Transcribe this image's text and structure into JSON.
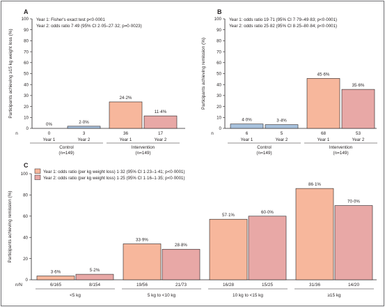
{
  "colors": {
    "control": "#a7c1dc",
    "year1": "#f7b79c",
    "year2": "#e8a8a6",
    "axis": "#231f20",
    "border": "#6d6e71"
  },
  "chart_data": [
    {
      "panel": "A",
      "type": "bar",
      "ylabel": "Participants achieving ≥15 kg weight loss (%)",
      "ylim": [
        0,
        100
      ],
      "yticks": [
        0,
        10,
        20,
        30,
        40,
        50,
        60,
        70,
        80,
        90,
        100
      ],
      "notes": [
        "Year 1: Fisher's exact test p<0·0001",
        "Year 2: odds ratio 7·49 (95% CI 2·05–27·32; p=0·0023)"
      ],
      "n_label": "n",
      "groups": [
        {
          "name": "Control",
          "n": "(n=149)",
          "color": "control",
          "bars": [
            {
              "x": "Year 1",
              "value": 0,
              "label": "0%",
              "n": "0"
            },
            {
              "x": "Year 2",
              "value": 2.0,
              "label": "2·0%",
              "n": "3"
            }
          ]
        },
        {
          "name": "Intervention",
          "n": "(n=149)",
          "color": "year1",
          "bars": [
            {
              "x": "Year 1",
              "value": 24.2,
              "label": "24·2%",
              "n": "36"
            },
            {
              "x": "Year 2",
              "value": 11.4,
              "label": "11·4%",
              "n": "17",
              "color": "year2"
            }
          ]
        }
      ]
    },
    {
      "panel": "B",
      "type": "bar",
      "ylabel": "Participants achieving remission (%)",
      "ylim": [
        0,
        100
      ],
      "yticks": [
        0,
        10,
        20,
        30,
        40,
        50,
        60,
        70,
        80,
        90,
        100
      ],
      "notes": [
        "Year 1: odds ratio 19·71 (95% CI 7·79–49·83; p<0·0001)",
        "Year 2: odds ratio 25·82 (95% CI 8·25–80·84; p<0·0001)"
      ],
      "n_label": "n",
      "groups": [
        {
          "name": "Control",
          "n": "(n=149)",
          "color": "control",
          "bars": [
            {
              "x": "Year 1",
              "value": 4.0,
              "label": "4·0%",
              "n": "6"
            },
            {
              "x": "Year 2",
              "value": 3.4,
              "label": "3·4%",
              "n": "5"
            }
          ]
        },
        {
          "name": "Intervention",
          "n": "(n=149)",
          "color": "year1",
          "bars": [
            {
              "x": "Year 1",
              "value": 45.6,
              "label": "45·6%",
              "n": "68"
            },
            {
              "x": "Year 2",
              "value": 35.6,
              "label": "35·6%",
              "n": "53",
              "color": "year2"
            }
          ]
        }
      ]
    },
    {
      "panel": "C",
      "type": "bar",
      "ylabel": "Participants achieving remission (%)",
      "ylim": [
        0,
        100
      ],
      "yticks": [
        0,
        20,
        40,
        60,
        80,
        100
      ],
      "n_label": "n/N",
      "legend": [
        {
          "name": "Year 1: odds ratio (per kg weight loss) 1·32 (95% CI 1·23–1·41; p<0·0001)",
          "color": "year1"
        },
        {
          "name": "Year 2: odds ratio (per kg weight loss) 1·25 (95% CI 1·16–1·35; p<0·0001)",
          "color": "year2"
        }
      ],
      "categories": [
        "<5 kg",
        "5 kg to <10 kg",
        "10 kg to <15 kg",
        "≥15 kg"
      ],
      "series": [
        {
          "name": "Year 1",
          "color": "year1",
          "values": [
            3.6,
            33.9,
            57.1,
            86.1
          ],
          "labels": [
            "3·6%",
            "33·9%",
            "57·1%",
            "86·1%"
          ],
          "n": [
            "6/165",
            "19/56",
            "16/28",
            "31/36"
          ]
        },
        {
          "name": "Year 2",
          "color": "year2",
          "values": [
            5.2,
            28.8,
            60.0,
            70.0
          ],
          "labels": [
            "5·2%",
            "28·8%",
            "60·0%",
            "70·0%"
          ],
          "n": [
            "8/154",
            "21/73",
            "15/25",
            "14/20"
          ]
        }
      ]
    }
  ]
}
